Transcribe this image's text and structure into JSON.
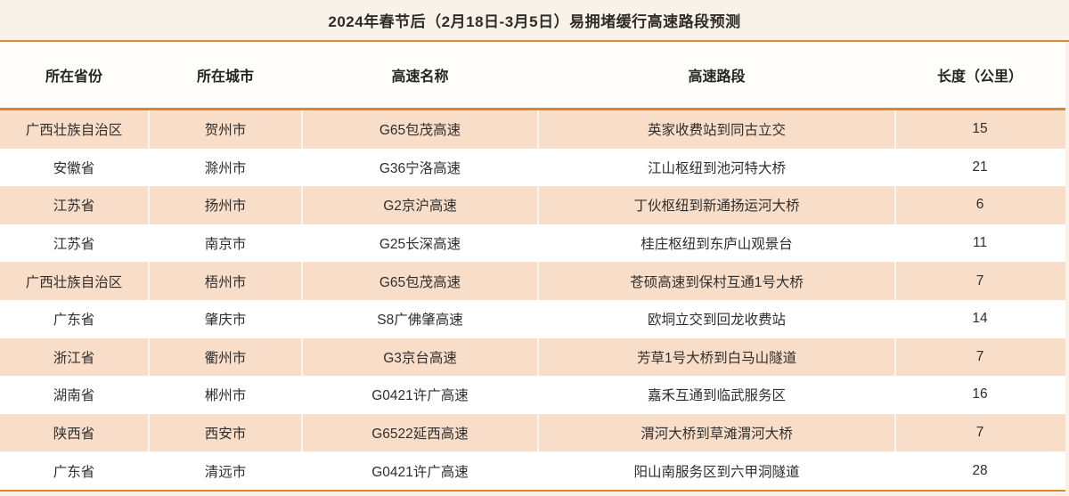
{
  "title": "2024年春节后（2月18日-3月5日）易拥堵缓行高速路段预测",
  "table": {
    "columns": [
      "所在省份",
      "所在城市",
      "高速名称",
      "高速路段",
      "长度（公里）"
    ],
    "rows": [
      [
        "广西壮族自治区",
        "贺州市",
        "G65包茂高速",
        "英家收费站到同古立交",
        "15"
      ],
      [
        "安徽省",
        "滁州市",
        "G36宁洛高速",
        "江山枢纽到池河特大桥",
        "21"
      ],
      [
        "江苏省",
        "扬州市",
        "G2京沪高速",
        "丁伙枢纽到新通扬运河大桥",
        "6"
      ],
      [
        "江苏省",
        "南京市",
        "G25长深高速",
        "桂庄枢纽到东庐山观景台",
        "11"
      ],
      [
        "广西壮族自治区",
        "梧州市",
        "G65包茂高速",
        "苍硕高速到保村互通1号大桥",
        "7"
      ],
      [
        "广东省",
        "肇庆市",
        "S8广佛肇高速",
        "欧垌立交到回龙收费站",
        "14"
      ],
      [
        "浙江省",
        "衢州市",
        "G3京台高速",
        "芳草1号大桥到白马山隧道",
        "7"
      ],
      [
        "湖南省",
        "郴州市",
        "G0421许广高速",
        "嘉禾互通到临武服务区",
        "16"
      ],
      [
        "陕西省",
        "西安市",
        "G6522延西高速",
        "渭河大桥到草滩渭河大桥",
        "7"
      ],
      [
        "广东省",
        "清远市",
        "G0421许广高速",
        "阳山南服务区到六甲洞隧道",
        "28"
      ]
    ]
  },
  "colors": {
    "accent_rule": "#DD8430",
    "row_alt_bg": "#F8DEC9",
    "header_bg": "#FFFDF9",
    "page_bg": "#F9F2E9",
    "text": "#302E2C"
  },
  "chart_data": {
    "type": "table",
    "title": "2024年春节后（2月18日-3月5日）易拥堵缓行高速路段预测",
    "columns": [
      "所在省份",
      "所在城市",
      "高速名称",
      "高速路段",
      "长度（公里）"
    ],
    "rows": [
      [
        "广西壮族自治区",
        "贺州市",
        "G65包茂高速",
        "英家收费站到同古立交",
        15
      ],
      [
        "安徽省",
        "滁州市",
        "G36宁洛高速",
        "江山枢纽到池河特大桥",
        21
      ],
      [
        "江苏省",
        "扬州市",
        "G2京沪高速",
        "丁伙枢纽到新通扬运河大桥",
        6
      ],
      [
        "江苏省",
        "南京市",
        "G25长深高速",
        "桂庄枢纽到东庐山观景台",
        11
      ],
      [
        "广西壮族自治区",
        "梧州市",
        "G65包茂高速",
        "苍硕高速到保村互通1号大桥",
        7
      ],
      [
        "广东省",
        "肇庆市",
        "S8广佛肇高速",
        "欧垌立交到回龙收费站",
        14
      ],
      [
        "浙江省",
        "衢州市",
        "G3京台高速",
        "芳草1号大桥到白马山隧道",
        7
      ],
      [
        "湖南省",
        "郴州市",
        "G0421许广高速",
        "嘉禾互通到临武服务区",
        16
      ],
      [
        "陕西省",
        "西安市",
        "G6522延西高速",
        "渭河大桥到草滩渭河大桥",
        7
      ],
      [
        "广东省",
        "清远市",
        "G0421许广高速",
        "阳山南服务区到六甲洞隧道",
        28
      ]
    ],
    "layout": {
      "striped": true,
      "stripe_pattern": "odd-rows-peach",
      "grid": "vertical-dividers-in-striped-rows-only"
    }
  }
}
